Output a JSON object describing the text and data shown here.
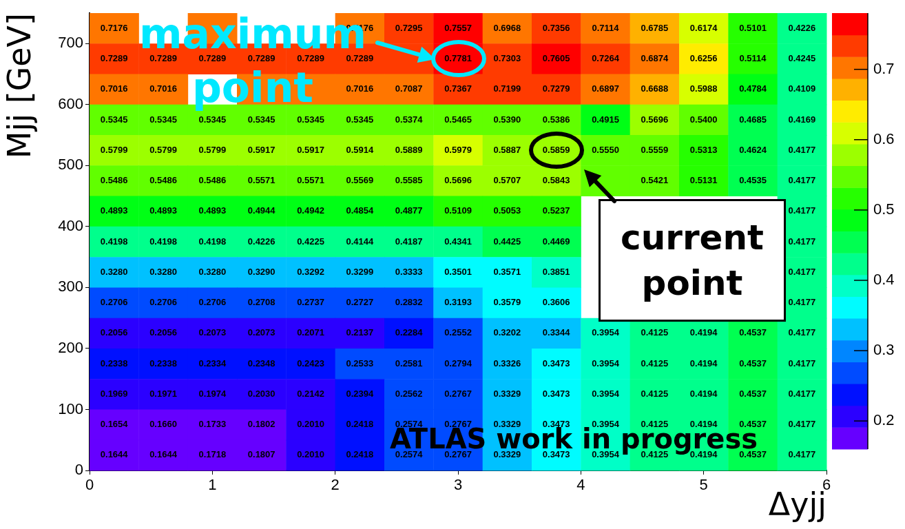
{
  "chart_data": {
    "type": "heatmap",
    "xlabel": "Δyjj",
    "ylabel": "Mjj [GeV]",
    "x": [
      0.2,
      0.6,
      1.0,
      1.4,
      1.8,
      2.2,
      2.6,
      3.0,
      3.4,
      3.8,
      4.2,
      4.6,
      5.0,
      5.4,
      5.8
    ],
    "y": [
      725,
      675,
      625,
      575,
      525,
      475,
      425,
      375,
      325,
      275,
      225,
      175,
      125,
      75,
      25
    ],
    "xlim": [
      0,
      6
    ],
    "xticks": [
      0,
      1,
      2,
      3,
      4,
      5,
      6
    ],
    "ylim": [
      0,
      750
    ],
    "yticks": [
      0,
      100,
      200,
      300,
      400,
      500,
      600,
      700
    ],
    "clim": [
      0.16,
      0.78
    ],
    "cticks": [
      0.2,
      0.3,
      0.4,
      0.5,
      0.6,
      0.7
    ],
    "cells": [
      [
        0.7176,
        null,
        0.7176,
        null,
        null,
        0.7176,
        0.7295,
        0.7557,
        0.6968,
        0.7356,
        0.7114,
        0.6785,
        0.6174,
        0.5101,
        0.4226
      ],
      [
        0.7289,
        0.7289,
        0.7289,
        0.7289,
        0.7289,
        0.7289,
        0.7292,
        0.7781,
        0.7303,
        0.7605,
        0.7264,
        0.6874,
        0.6256,
        0.5114,
        0.4245
      ],
      [
        0.7016,
        0.7016,
        null,
        0.7016,
        0.7016,
        0.7016,
        0.7087,
        0.7367,
        0.7199,
        0.7279,
        0.6897,
        0.6688,
        0.5988,
        0.4784,
        0.4109
      ],
      [
        0.5345,
        0.5345,
        0.5345,
        0.5345,
        0.5345,
        0.5345,
        0.5374,
        0.5465,
        0.539,
        0.5386,
        0.4915,
        0.5696,
        0.54,
        0.4685,
        0.4169
      ],
      [
        0.5799,
        0.5799,
        0.5799,
        0.5917,
        0.5917,
        0.5914,
        0.5889,
        0.5979,
        0.5887,
        0.5859,
        0.555,
        0.5559,
        0.5313,
        0.4624,
        0.4177
      ],
      [
        0.5486,
        0.5486,
        0.5486,
        0.5571,
        0.5571,
        0.5569,
        0.5585,
        0.5696,
        0.5707,
        0.5843,
        0.5477,
        0.5421,
        0.5131,
        0.4535,
        0.4177
      ],
      [
        0.4893,
        0.4893,
        0.4893,
        0.4944,
        0.4942,
        0.4854,
        0.4877,
        0.5109,
        0.5053,
        0.5237,
        null,
        null,
        null,
        null,
        0.4177
      ],
      [
        0.4198,
        0.4198,
        0.4198,
        0.4226,
        0.4225,
        0.4144,
        0.4187,
        0.4341,
        0.4425,
        0.4469,
        null,
        null,
        null,
        null,
        0.4177
      ],
      [
        0.328,
        0.328,
        0.328,
        0.329,
        0.3292,
        0.3299,
        0.3333,
        0.3501,
        0.3571,
        0.3851,
        null,
        null,
        null,
        null,
        0.4177
      ],
      [
        0.2706,
        0.2706,
        0.2706,
        0.2708,
        0.2737,
        0.2727,
        0.2832,
        0.3193,
        0.3579,
        0.3606,
        null,
        null,
        null,
        null,
        0.4177
      ],
      [
        0.2056,
        0.2056,
        0.2073,
        0.2073,
        0.2071,
        0.2137,
        0.2284,
        0.2552,
        0.3202,
        0.3344,
        0.3954,
        0.4125,
        0.4194,
        0.4537,
        0.4177
      ],
      [
        0.2338,
        0.2338,
        0.2334,
        0.2348,
        0.2423,
        0.2533,
        0.2581,
        0.2794,
        0.3326,
        0.3473,
        0.3954,
        0.4125,
        0.4194,
        0.4537,
        0.4177
      ],
      [
        0.1969,
        0.1971,
        0.1974,
        0.203,
        0.2142,
        0.2394,
        0.2562,
        0.2767,
        0.3329,
        0.3473,
        0.3954,
        0.4125,
        0.4194,
        0.4537,
        0.4177
      ],
      [
        0.1654,
        0.166,
        0.1733,
        0.1802,
        0.201,
        0.2418,
        0.2574,
        0.2767,
        0.3329,
        0.3473,
        0.3954,
        0.4125,
        0.4194,
        0.4537,
        0.4177
      ],
      [
        0.1644,
        0.1644,
        0.1718,
        0.1807,
        0.201,
        0.2418,
        0.2574,
        0.2767,
        0.3329,
        0.3473,
        0.3954,
        0.4125,
        0.4194,
        0.4537,
        0.4177
      ]
    ],
    "cell_labels": [
      [
        "0.7176",
        null,
        null,
        null,
        null,
        "0.7176",
        "0.7295",
        "0.7557",
        "0.6968",
        "0.7356",
        "0.7114",
        "0.6785",
        "0.6174",
        "0.5101",
        "0.4226"
      ],
      [
        "0.7289",
        "0.7289",
        "0.7289",
        "0.7289",
        "0.7289",
        "0.7289",
        null,
        "0.7781",
        "0.7303",
        "0.7605",
        "0.7264",
        "0.6874",
        "0.6256",
        "0.5114",
        "0.4245"
      ],
      [
        "0.7016",
        "0.7016",
        null,
        null,
        null,
        "0.7016",
        "0.7087",
        "0.7367",
        "0.7199",
        "0.7279",
        "0.6897",
        "0.6688",
        "0.5988",
        "0.4784",
        "0.4109"
      ],
      [
        "0.5345",
        "0.5345",
        "0.5345",
        "0.5345",
        "0.5345",
        "0.5345",
        "0.5374",
        "0.5465",
        "0.5390",
        "0.5386",
        "0.4915",
        "0.5696",
        "0.5400",
        "0.4685",
        "0.4169"
      ],
      [
        "0.5799",
        "0.5799",
        "0.5799",
        "0.5917",
        "0.5917",
        "0.5914",
        "0.5889",
        "0.5979",
        "0.5887",
        "0.5859",
        "0.5550",
        "0.5559",
        "0.5313",
        "0.4624",
        "0.4177"
      ],
      [
        "0.5486",
        "0.5486",
        "0.5486",
        "0.5571",
        "0.5571",
        "0.5569",
        "0.5585",
        "0.5696",
        "0.5707",
        "0.5843",
        null,
        "0.5421",
        "0.5131",
        "0.4535",
        "0.4177"
      ],
      [
        "0.4893",
        "0.4893",
        "0.4893",
        "0.4944",
        "0.4942",
        "0.4854",
        "0.4877",
        "0.5109",
        "0.5053",
        "0.5237",
        null,
        null,
        null,
        null,
        "0.4177"
      ],
      [
        "0.4198",
        "0.4198",
        "0.4198",
        "0.4226",
        "0.4225",
        "0.4144",
        "0.4187",
        "0.4341",
        "0.4425",
        "0.4469",
        null,
        null,
        null,
        null,
        "0.4177"
      ],
      [
        "0.3280",
        "0.3280",
        "0.3280",
        "0.3290",
        "0.3292",
        "0.3299",
        "0.3333",
        "0.3501",
        "0.3571",
        "0.3851",
        null,
        null,
        null,
        null,
        "0.4177"
      ],
      [
        "0.2706",
        "0.2706",
        "0.2706",
        "0.2708",
        "0.2737",
        "0.2727",
        "0.2832",
        "0.3193",
        "0.3579",
        "0.3606",
        null,
        null,
        null,
        null,
        "0.4177"
      ],
      [
        "0.2056",
        "0.2056",
        "0.2073",
        "0.2073",
        "0.2071",
        "0.2137",
        "0.2284",
        "0.2552",
        "0.3202",
        "0.3344",
        "0.3954",
        "0.4125",
        "0.4194",
        "0.4537",
        "0.4177"
      ],
      [
        "0.2338",
        "0.2338",
        "0.2334",
        "0.2348",
        "0.2423",
        "0.2533",
        "0.2581",
        "0.2794",
        "0.3326",
        "0.3473",
        "0.3954",
        "0.4125",
        "0.4194",
        "0.4537",
        "0.4177"
      ],
      [
        "0.1969",
        "0.1971",
        "0.1974",
        "0.2030",
        "0.2142",
        "0.2394",
        "0.2562",
        "0.2767",
        "0.3329",
        "0.3473",
        "0.3954",
        "0.4125",
        "0.4194",
        "0.4537",
        "0.4177"
      ],
      [
        "0.1654",
        "0.1660",
        "0.1733",
        "0.1802",
        "0.2010",
        "0.2418",
        "0.2574",
        "0.2767",
        "0.3329",
        "0.3473",
        "0.3954",
        "0.4125",
        "0.4194",
        "0.4537",
        "0.4177"
      ],
      [
        "0.1644",
        "0.1644",
        "0.1718",
        "0.1807",
        "0.2010",
        "0.2418",
        "0.2574",
        "0.2767",
        "0.3329",
        "0.3473",
        "0.3954",
        "0.4125",
        "0.4194",
        "0.4537",
        "0.4177"
      ]
    ],
    "annotations": [
      "maximum point",
      "current point",
      "ATLAS work in progress"
    ]
  }
}
